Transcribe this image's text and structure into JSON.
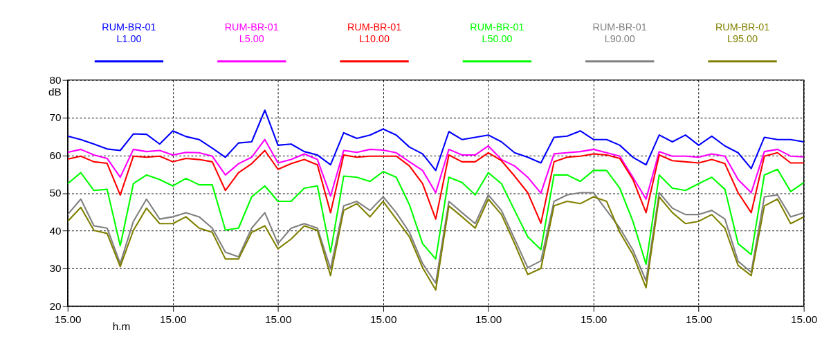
{
  "chart_data": {
    "type": "line",
    "xlabel": "h.m",
    "ylabel": "dB",
    "categories": [
      "15.00",
      null,
      null,
      null,
      null,
      null,
      null,
      null,
      "15.00",
      null,
      null,
      null,
      null,
      null,
      null,
      null,
      "15.00",
      null,
      null,
      null,
      null,
      null,
      null,
      null,
      "15.00",
      null,
      null,
      null,
      null,
      null,
      null,
      null,
      "15.00",
      null,
      null,
      null,
      null,
      null,
      null,
      null,
      "15.00",
      null,
      null,
      null,
      null,
      null,
      null,
      null,
      "15.00",
      null,
      null,
      null,
      null,
      null,
      null,
      null,
      "15.00"
    ],
    "ylim": [
      20,
      80
    ],
    "yticks": [
      20,
      30,
      40,
      50,
      60,
      70,
      80
    ],
    "grid": true,
    "legend": "top",
    "series": [
      {
        "name": "RUM-BR-01\nL1.00",
        "color": "#0000ff",
        "values": [
          65.1,
          64.2,
          63,
          61.7,
          61.3,
          65.7,
          65.6,
          63,
          66.5,
          65,
          64.2,
          61.9,
          59.5,
          63.3,
          63.6,
          72,
          62.7,
          63,
          61,
          60.1,
          57.5,
          66,
          64.5,
          65.4,
          67,
          65.4,
          62.2,
          60.4,
          56,
          66.3,
          64.2,
          64.8,
          65.4,
          63.6,
          60.7,
          59.5,
          58,
          64.8,
          65.1,
          66.5,
          64.2,
          64.2,
          62.7,
          59.5,
          57.5,
          65.4,
          63.6,
          65.4,
          62.7,
          65.1,
          62.5,
          60.7,
          56.5,
          64.8,
          64.2,
          64.2,
          63.6
        ]
      },
      {
        "name": "RUM-BR-01\nL5.00",
        "color": "#ff00ff",
        "values": [
          60.8,
          61.6,
          60.1,
          59.2,
          54.2,
          61.6,
          61,
          61.3,
          60.1,
          60.8,
          60.7,
          59.8,
          54.8,
          57.8,
          59.5,
          64.2,
          58,
          58.9,
          60.4,
          58.9,
          49.2,
          61.3,
          60.8,
          61.6,
          61.4,
          60.7,
          58.3,
          56,
          50.1,
          61.6,
          60.1,
          60.1,
          62.5,
          58.9,
          57.2,
          54.2,
          50,
          60.4,
          60.7,
          61,
          61.6,
          60.7,
          59.8,
          54.2,
          48.4,
          61,
          59.8,
          59.8,
          59.5,
          60.4,
          59.8,
          53.6,
          50.1,
          61,
          61.6,
          59.8,
          59.6
        ]
      },
      {
        "name": "RUM-BR-01\nL10.00",
        "color": "#ff0000",
        "values": [
          59,
          59.8,
          58.3,
          57.9,
          49.5,
          59.8,
          59.5,
          59.8,
          58.3,
          59.2,
          58.9,
          58.3,
          50.7,
          55.4,
          57.8,
          61.3,
          56.3,
          57.8,
          58.9,
          57.5,
          44.8,
          60.1,
          59.5,
          59.8,
          59.8,
          59.8,
          57.2,
          52.5,
          43.1,
          60.1,
          58.3,
          58.3,
          60.7,
          58.6,
          54.5,
          50.1,
          42,
          58.3,
          59.5,
          59.8,
          60.4,
          60.1,
          59.2,
          53.6,
          44.8,
          60.1,
          58.6,
          58.3,
          58,
          58.9,
          57.8,
          50.1,
          44.8,
          59.8,
          60.7,
          58,
          58
        ]
      },
      {
        "name": "RUM-BR-01\nL50.00",
        "color": "#00ff00",
        "values": [
          52.5,
          55.4,
          50.7,
          51,
          36,
          52.5,
          54.8,
          53.6,
          51.9,
          53.9,
          52.2,
          52.2,
          40.2,
          40.7,
          49,
          51.9,
          47.8,
          47.8,
          51.3,
          51.9,
          34.3,
          54.5,
          54.2,
          53.1,
          55.7,
          54.2,
          46.9,
          36.6,
          32.5,
          54.2,
          52.8,
          49.5,
          55.4,
          52.5,
          45.4,
          38.4,
          35,
          54.8,
          54.8,
          53.1,
          56,
          56,
          51.3,
          42.5,
          31.1,
          54.8,
          51.3,
          50.7,
          52.5,
          54.2,
          51,
          36.6,
          33.7,
          54.8,
          56.3,
          50.4,
          52.8
        ]
      },
      {
        "name": "RUM-BR-01\nL90.00",
        "color": "#808080",
        "values": [
          44.3,
          48.4,
          41.3,
          40.7,
          31.3,
          42.5,
          48.4,
          43.1,
          43.7,
          44.8,
          43.7,
          40.7,
          34.3,
          33.1,
          40.7,
          44.8,
          36.6,
          40.7,
          41.9,
          40.7,
          29.9,
          46.6,
          47.8,
          45.4,
          49,
          44.8,
          39.6,
          31.3,
          26.1,
          47.8,
          44.8,
          41.9,
          49.5,
          45.4,
          37.8,
          30.2,
          32,
          47.8,
          49.5,
          50.1,
          50.1,
          45.4,
          40.7,
          34.9,
          26.7,
          50.1,
          46,
          44.3,
          44.3,
          45.4,
          43.1,
          31.9,
          29,
          49,
          49.5,
          43.7,
          44.8
        ]
      },
      {
        "name": "RUM-BR-01\nL95.00",
        "color": "#808000",
        "values": [
          42.5,
          46.2,
          40.1,
          39.3,
          30.5,
          40.1,
          46,
          41.9,
          41.9,
          43.7,
          40.7,
          39.6,
          32.5,
          32.5,
          39.6,
          41.3,
          35.2,
          37.8,
          41.3,
          40.1,
          28.1,
          45.4,
          47.2,
          43.7,
          47.8,
          43.1,
          38.4,
          30.2,
          24.3,
          46.6,
          43.7,
          40.7,
          48.4,
          44.3,
          36.6,
          28.4,
          30,
          46.6,
          47.8,
          47.2,
          49,
          47.8,
          39.6,
          33.7,
          24.9,
          49,
          44.8,
          41.9,
          42.5,
          44.3,
          40.7,
          30.8,
          28.1,
          46.6,
          48.4,
          41.9,
          43.7
        ]
      }
    ]
  }
}
